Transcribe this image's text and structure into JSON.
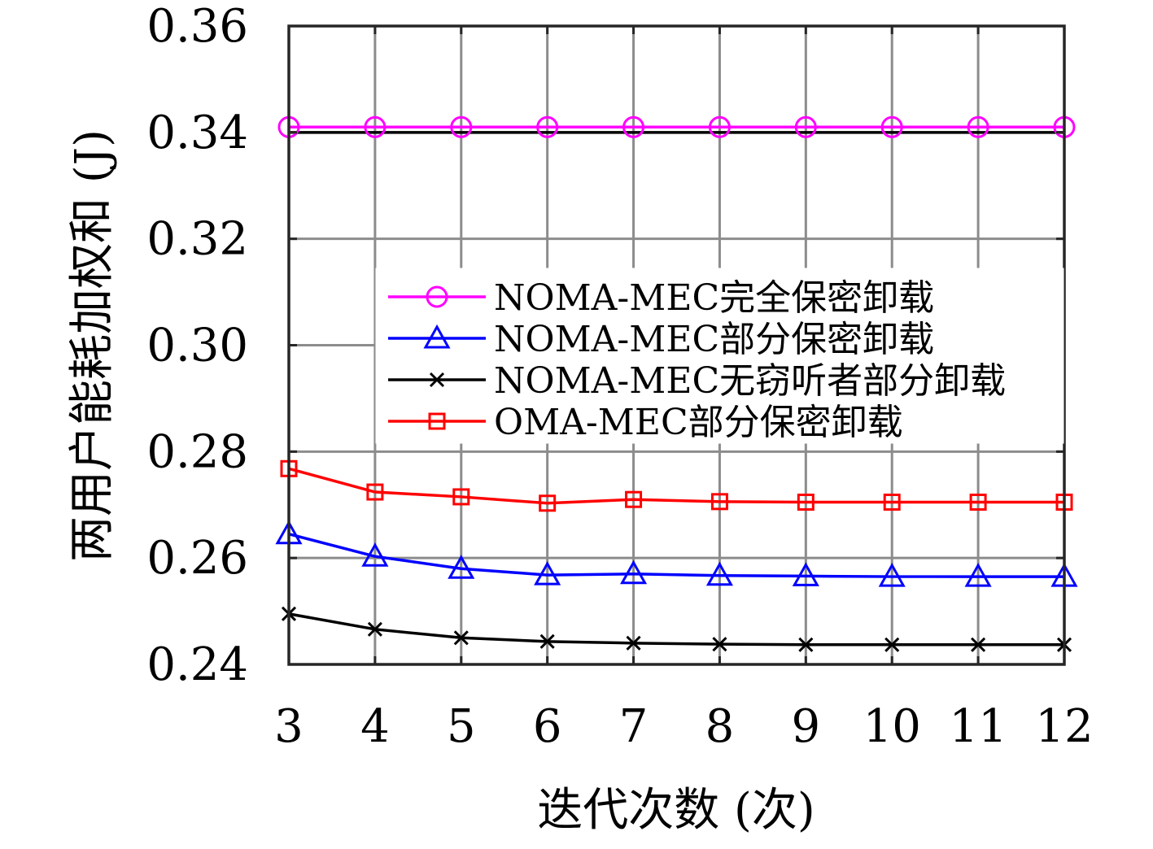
{
  "chart_data": {
    "type": "line",
    "xlabel": "迭代次数 (次)",
    "ylabel": "两用户能耗加权和 (J)",
    "xlim": [
      3,
      12
    ],
    "ylim": [
      0.24,
      0.36
    ],
    "grid": true,
    "legend_position": "center-right",
    "x": [
      3,
      4,
      5,
      6,
      7,
      8,
      9,
      10,
      11,
      12
    ],
    "x_ticks": [
      "3",
      "4",
      "5",
      "6",
      "7",
      "8",
      "9",
      "10",
      "11",
      "12"
    ],
    "y_ticks": [
      "0.24",
      "0.26",
      "0.28",
      "0.30",
      "0.32",
      "0.34",
      "0.36"
    ],
    "series": [
      {
        "name": "NOMA-MEC完全保密卸载",
        "color": "#ff00ff",
        "marker": "circle",
        "values": [
          0.341,
          0.341,
          0.341,
          0.341,
          0.341,
          0.341,
          0.341,
          0.341,
          0.341,
          0.341
        ]
      },
      {
        "name": "NOMA-MEC部分保密卸载",
        "color": "#0000ff",
        "marker": "triangle",
        "values": [
          0.2645,
          0.2603,
          0.258,
          0.2568,
          0.257,
          0.2567,
          0.2566,
          0.2565,
          0.2565,
          0.2565
        ]
      },
      {
        "name": "NOMA-MEC无窃听者部分卸载",
        "color": "#000000",
        "marker": "x",
        "values": [
          0.2495,
          0.2466,
          0.245,
          0.2443,
          0.244,
          0.2438,
          0.2437,
          0.2437,
          0.2437,
          0.2437
        ]
      },
      {
        "name": "OMA-MEC部分保密卸载",
        "color": "#ff0000",
        "marker": "square",
        "values": [
          0.2768,
          0.2724,
          0.2715,
          0.2703,
          0.271,
          0.2706,
          0.2705,
          0.2705,
          0.2705,
          0.2705
        ]
      }
    ],
    "reference_line": {
      "value": 0.34,
      "color": "#000000"
    }
  }
}
